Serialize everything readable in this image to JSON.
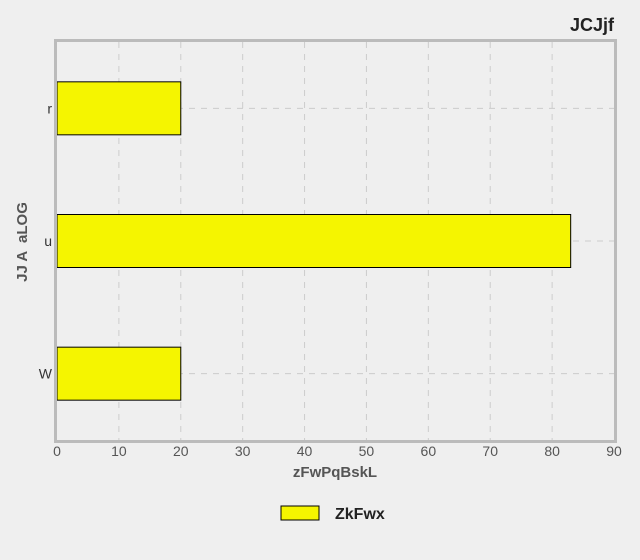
{
  "chart_data": {
    "type": "bar",
    "orientation": "horizontal",
    "title": "JCJjf",
    "xlabel": "zFwPqBskL",
    "ylabel": "JJ A  aLOG",
    "categories": [
      "r",
      "u",
      "W"
    ],
    "series": [
      {
        "name": "ZkFwx",
        "values": [
          20,
          83,
          20
        ],
        "color": "#f5f500"
      }
    ],
    "xlim": [
      0,
      90
    ],
    "xticks": [
      0,
      10,
      20,
      30,
      40,
      50,
      60,
      70,
      80,
      90
    ],
    "grid": true,
    "legend_position": "bottom"
  },
  "colors": {
    "background": "#efefef",
    "frame": "#bbbbbb",
    "grid": "#cccccc",
    "bar_edge": "#000000"
  }
}
